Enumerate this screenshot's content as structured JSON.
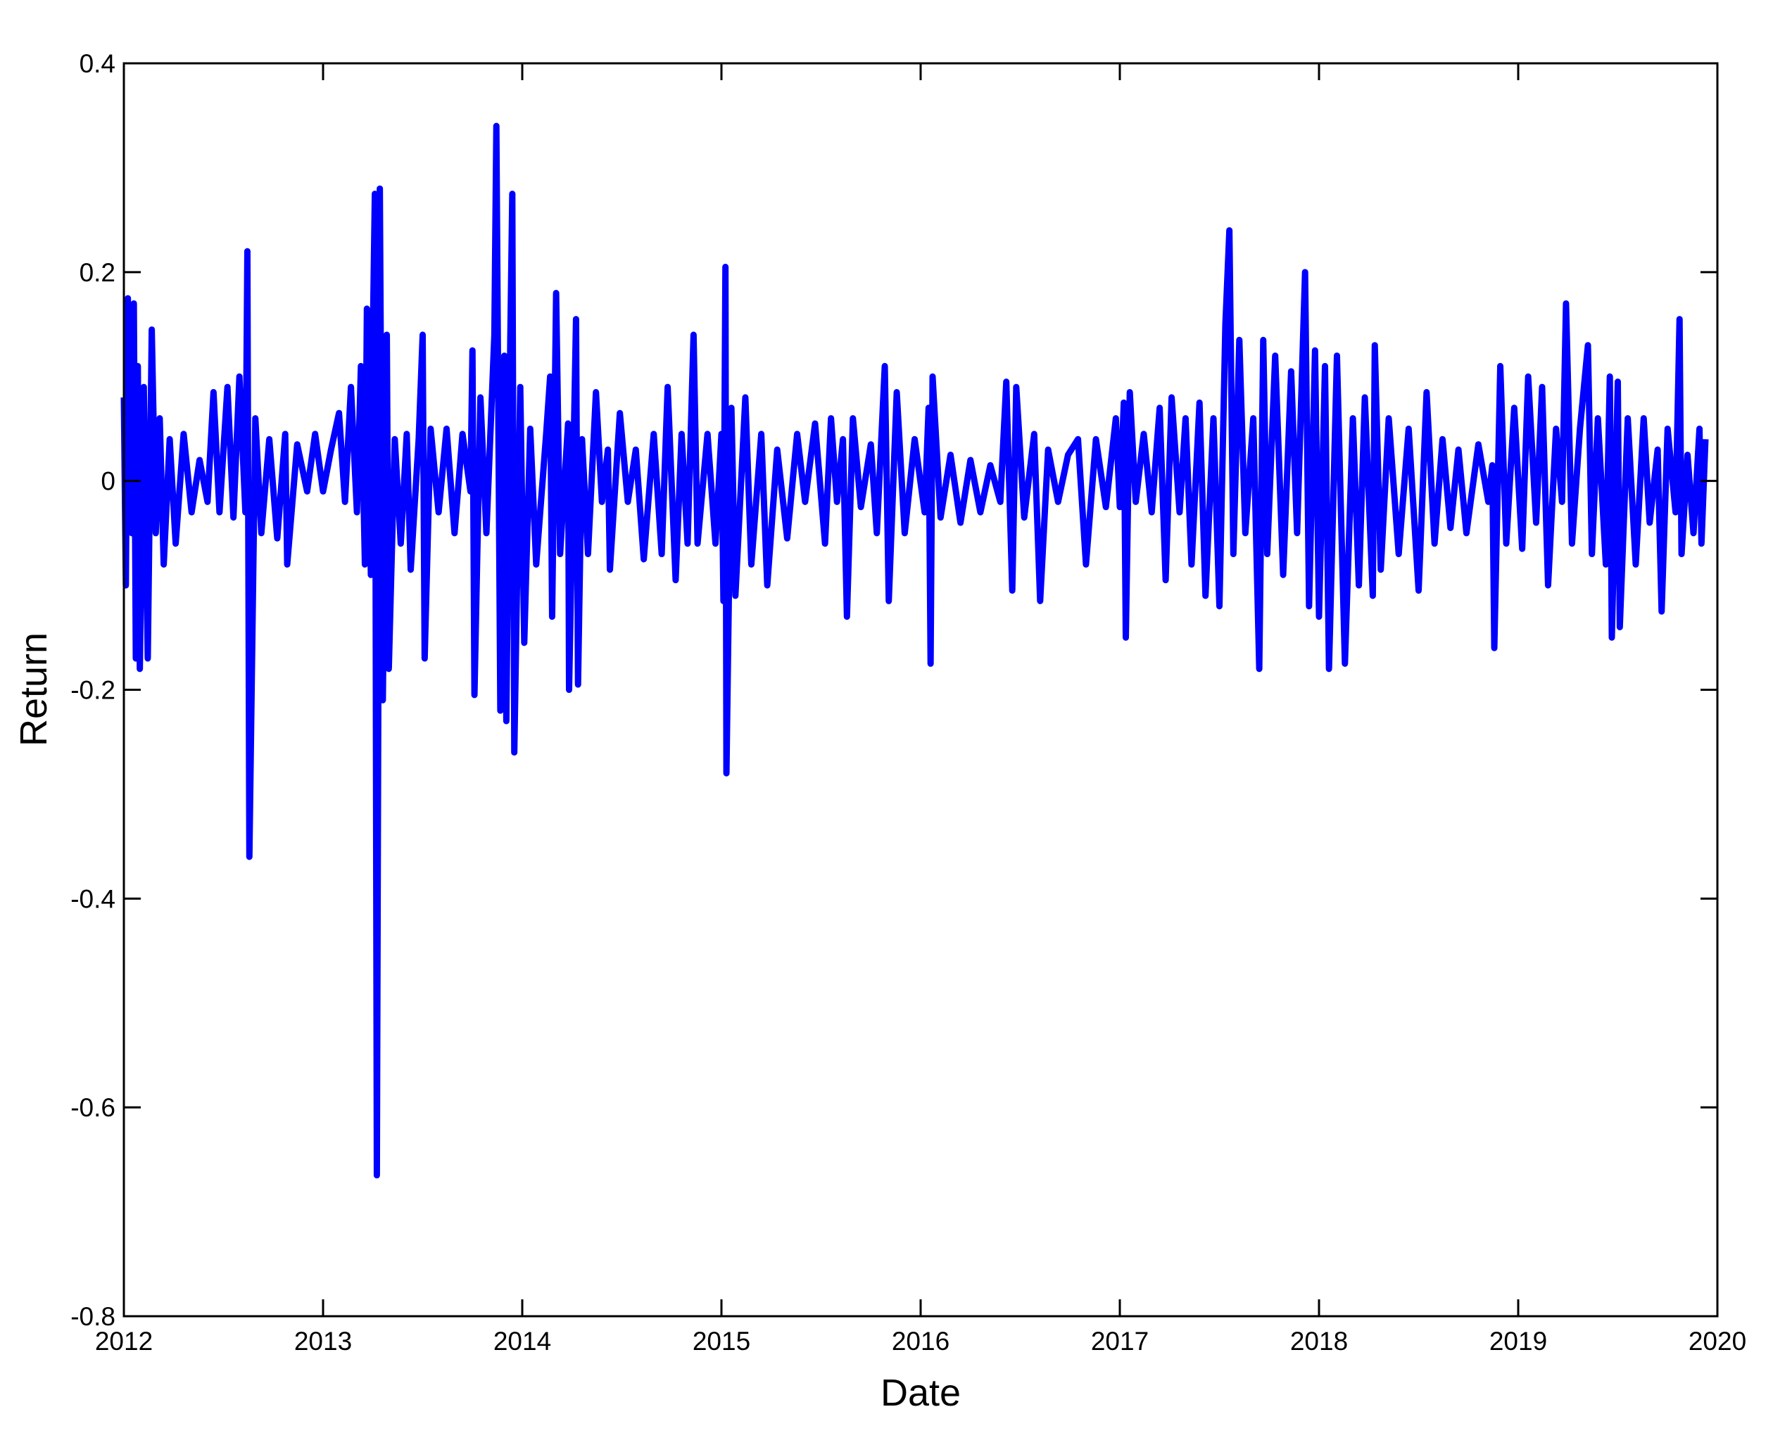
{
  "chart_data": {
    "type": "line",
    "xlabel": "Date",
    "ylabel": "Return",
    "xlim": [
      2012,
      2020
    ],
    "xticks": [
      2012,
      2013,
      2014,
      2015,
      2016,
      2017,
      2018,
      2019,
      2020
    ],
    "ylim": [
      -0.8,
      0.4
    ],
    "yticks": [
      -0.8,
      -0.6,
      -0.4,
      -0.2,
      0,
      0.2,
      0.4
    ],
    "series": [
      {
        "color": "#0000ff",
        "x": [
          2012.0,
          2012.01,
          2012.02,
          2012.04,
          2012.05,
          2012.06,
          2012.07,
          2012.08,
          2012.1,
          2012.12,
          2012.14,
          2012.16,
          2012.18,
          2012.2,
          2012.23,
          2012.26,
          2012.3,
          2012.34,
          2012.38,
          2012.42,
          2012.45,
          2012.48,
          2012.52,
          2012.55,
          2012.58,
          2012.61,
          2012.62,
          2012.63,
          2012.66,
          2012.69,
          2012.73,
          2012.77,
          2012.81,
          2012.82,
          2012.87,
          2012.92,
          2012.96,
          2013.0,
          2013.04,
          2013.08,
          2013.11,
          2013.14,
          2013.17,
          2013.19,
          2013.21,
          2013.22,
          2013.24,
          2013.25,
          2013.26,
          2013.27,
          2013.285,
          2013.3,
          2013.32,
          2013.33,
          2013.36,
          2013.39,
          2013.42,
          2013.44,
          2013.48,
          2013.5,
          2013.51,
          2013.54,
          2013.58,
          2013.62,
          2013.66,
          2013.7,
          2013.74,
          2013.75,
          2013.76,
          2013.79,
          2013.82,
          2013.86,
          2013.87,
          2013.89,
          2013.91,
          2013.92,
          2013.94,
          2013.95,
          2013.96,
          2013.99,
          2014.01,
          2014.04,
          2014.07,
          2014.12,
          2014.14,
          2014.15,
          2014.17,
          2014.19,
          2014.23,
          2014.235,
          2014.27,
          2014.28,
          2014.3,
          2014.33,
          2014.37,
          2014.4,
          2014.43,
          2014.44,
          2014.49,
          2014.53,
          2014.57,
          2014.61,
          2014.66,
          2014.7,
          2014.73,
          2014.77,
          2014.8,
          2014.83,
          2014.86,
          2014.88,
          2014.93,
          2014.97,
          2015.0,
          2015.01,
          2015.02,
          2015.025,
          2015.05,
          2015.07,
          2015.12,
          2015.15,
          2015.2,
          2015.23,
          2015.28,
          2015.33,
          2015.38,
          2015.42,
          2015.47,
          2015.52,
          2015.55,
          2015.58,
          2015.61,
          2015.63,
          2015.66,
          2015.7,
          2015.75,
          2015.78,
          2015.82,
          2015.84,
          2015.88,
          2015.92,
          2015.97,
          2016.02,
          2016.04,
          2016.05,
          2016.06,
          2016.1,
          2016.15,
          2016.2,
          2016.25,
          2016.3,
          2016.35,
          2016.4,
          2016.43,
          2016.46,
          2016.48,
          2016.52,
          2016.57,
          2016.6,
          2016.64,
          2016.69,
          2016.74,
          2016.79,
          2016.83,
          2016.88,
          2016.93,
          2016.98,
          2017.0,
          2017.02,
          2017.03,
          2017.05,
          2017.08,
          2017.12,
          2017.16,
          2017.2,
          2017.23,
          2017.26,
          2017.3,
          2017.33,
          2017.36,
          2017.4,
          2017.43,
          2017.47,
          2017.5,
          2017.53,
          2017.55,
          2017.57,
          2017.6,
          2017.63,
          2017.67,
          2017.7,
          2017.72,
          2017.74,
          2017.78,
          2017.82,
          2017.86,
          2017.89,
          2017.93,
          2017.95,
          2017.98,
          2018.0,
          2018.03,
          2018.05,
          2018.09,
          2018.13,
          2018.17,
          2018.2,
          2018.23,
          2018.27,
          2018.28,
          2018.31,
          2018.35,
          2018.4,
          2018.45,
          2018.5,
          2018.54,
          2018.58,
          2018.62,
          2018.66,
          2018.7,
          2018.74,
          2018.8,
          2018.85,
          2018.87,
          2018.88,
          2018.91,
          2018.94,
          2018.98,
          2019.02,
          2019.05,
          2019.09,
          2019.12,
          2019.15,
          2019.19,
          2019.22,
          2019.24,
          2019.27,
          2019.31,
          2019.35,
          2019.37,
          2019.4,
          2019.44,
          2019.46,
          2019.47,
          2019.5,
          2019.51,
          2019.55,
          2019.59,
          2019.63,
          2019.66,
          2019.7,
          2019.72,
          2019.75,
          2019.79,
          2019.81,
          2019.82,
          2019.85,
          2019.88,
          2019.91,
          2019.92,
          2019.94
        ],
        "values": [
          0.08,
          -0.1,
          0.175,
          -0.05,
          0.17,
          -0.17,
          0.11,
          -0.18,
          0.09,
          -0.17,
          0.145,
          -0.05,
          0.06,
          -0.08,
          0.04,
          -0.06,
          0.045,
          -0.03,
          0.02,
          -0.02,
          0.085,
          -0.03,
          0.09,
          -0.035,
          0.1,
          -0.03,
          0.22,
          -0.36,
          0.06,
          -0.05,
          0.04,
          -0.055,
          0.045,
          -0.08,
          0.035,
          -0.01,
          0.045,
          -0.01,
          0.03,
          0.065,
          -0.02,
          0.09,
          -0.03,
          0.11,
          -0.08,
          0.165,
          -0.09,
          0.14,
          0.275,
          -0.665,
          0.28,
          -0.21,
          0.14,
          -0.18,
          0.04,
          -0.06,
          0.045,
          -0.085,
          0.04,
          0.14,
          -0.17,
          0.05,
          -0.03,
          0.05,
          -0.05,
          0.045,
          -0.01,
          0.125,
          -0.205,
          0.08,
          -0.05,
          0.14,
          0.34,
          -0.22,
          0.12,
          -0.23,
          0.135,
          0.275,
          -0.26,
          0.09,
          -0.155,
          0.05,
          -0.08,
          0.045,
          0.1,
          -0.13,
          0.18,
          -0.07,
          0.055,
          -0.2,
          0.155,
          -0.195,
          0.04,
          -0.07,
          0.085,
          -0.02,
          0.03,
          -0.085,
          0.065,
          -0.02,
          0.03,
          -0.075,
          0.045,
          -0.07,
          0.09,
          -0.095,
          0.045,
          -0.06,
          0.14,
          -0.06,
          0.045,
          -0.06,
          0.045,
          -0.115,
          0.205,
          -0.28,
          0.07,
          -0.11,
          0.08,
          -0.08,
          0.045,
          -0.1,
          0.03,
          -0.055,
          0.045,
          -0.02,
          0.055,
          -0.06,
          0.06,
          -0.02,
          0.04,
          -0.13,
          0.06,
          -0.025,
          0.035,
          -0.05,
          0.11,
          -0.115,
          0.085,
          -0.05,
          0.04,
          -0.03,
          0.07,
          -0.175,
          0.1,
          -0.035,
          0.025,
          -0.04,
          0.02,
          -0.03,
          0.015,
          -0.02,
          0.095,
          -0.105,
          0.09,
          -0.035,
          0.045,
          -0.115,
          0.03,
          -0.02,
          0.025,
          0.04,
          -0.08,
          0.04,
          -0.025,
          0.06,
          -0.025,
          0.075,
          -0.15,
          0.085,
          -0.02,
          0.045,
          -0.03,
          0.07,
          -0.095,
          0.08,
          -0.03,
          0.06,
          -0.08,
          0.075,
          -0.11,
          0.06,
          -0.12,
          0.15,
          0.24,
          -0.07,
          0.135,
          -0.05,
          0.06,
          -0.18,
          0.135,
          -0.07,
          0.12,
          -0.09,
          0.105,
          -0.05,
          0.2,
          -0.12,
          0.125,
          -0.13,
          0.11,
          -0.18,
          0.12,
          -0.175,
          0.06,
          -0.1,
          0.08,
          -0.11,
          0.13,
          -0.085,
          0.06,
          -0.07,
          0.05,
          -0.105,
          0.085,
          -0.06,
          0.04,
          -0.045,
          0.03,
          -0.05,
          0.035,
          -0.02,
          0.015,
          -0.16,
          0.11,
          -0.06,
          0.07,
          -0.065,
          0.1,
          -0.04,
          0.09,
          -0.1,
          0.05,
          -0.02,
          0.17,
          -0.06,
          0.05,
          0.13,
          -0.07,
          0.06,
          -0.08,
          0.1,
          -0.15,
          0.095,
          -0.14,
          0.06,
          -0.08,
          0.06,
          -0.04,
          0.03,
          -0.125,
          0.05,
          -0.03,
          0.155,
          -0.07,
          0.025,
          -0.05,
          0.05,
          -0.06,
          0.04
        ]
      }
    ]
  }
}
